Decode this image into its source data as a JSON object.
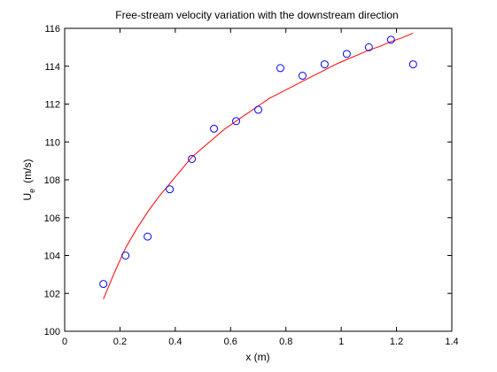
{
  "chart_data": {
    "type": "scatter",
    "title": "Free-stream velocity variation with the downstream direction",
    "xlabel": "x   (m)",
    "ylabel_main": "U",
    "ylabel_sub": "e",
    "ylabel_unit": "(m/s)",
    "xlim": [
      0,
      1.4
    ],
    "ylim": [
      100,
      116
    ],
    "xticks": [
      0,
      0.2,
      0.4,
      0.6,
      0.8,
      1,
      1.2,
      1.4
    ],
    "xtick_labels": [
      "0",
      "0.2",
      "0.4",
      "0.6",
      "0.8",
      "1",
      "1.2",
      "1.4"
    ],
    "yticks": [
      100,
      102,
      104,
      106,
      108,
      110,
      112,
      114,
      116
    ],
    "ytick_labels": [
      "100",
      "102",
      "104",
      "106",
      "108",
      "110",
      "112",
      "114",
      "116"
    ],
    "grid": false,
    "legend": "none",
    "series": [
      {
        "kind": "markers",
        "marker": "circle",
        "color": "#0000ff",
        "x": [
          0.14,
          0.22,
          0.3,
          0.38,
          0.46,
          0.54,
          0.62,
          0.7,
          0.78,
          0.86,
          0.94,
          1.02,
          1.1,
          1.18,
          1.26
        ],
        "y": [
          102.5,
          104.0,
          105.0,
          107.5,
          109.1,
          110.7,
          111.1,
          111.7,
          113.9,
          113.5,
          114.1,
          114.65,
          115.0,
          115.4,
          114.1
        ]
      },
      {
        "kind": "line",
        "color": "#ff0000",
        "x": [
          0.14,
          0.18,
          0.22,
          0.26,
          0.3,
          0.34,
          0.38,
          0.42,
          0.46,
          0.5,
          0.54,
          0.58,
          0.62,
          0.66,
          0.7,
          0.74,
          0.78,
          0.82,
          0.86,
          0.9,
          0.94,
          0.98,
          1.02,
          1.06,
          1.1,
          1.14,
          1.18,
          1.22,
          1.26
        ],
        "y": [
          101.7,
          103.1,
          104.4,
          105.4,
          106.3,
          107.1,
          107.8,
          108.5,
          109.2,
          109.7,
          110.2,
          110.7,
          111.1,
          111.5,
          111.9,
          112.3,
          112.6,
          112.9,
          113.2,
          113.5,
          113.8,
          114.1,
          114.35,
          114.6,
          114.85,
          115.05,
          115.3,
          115.5,
          115.75
        ]
      }
    ]
  }
}
